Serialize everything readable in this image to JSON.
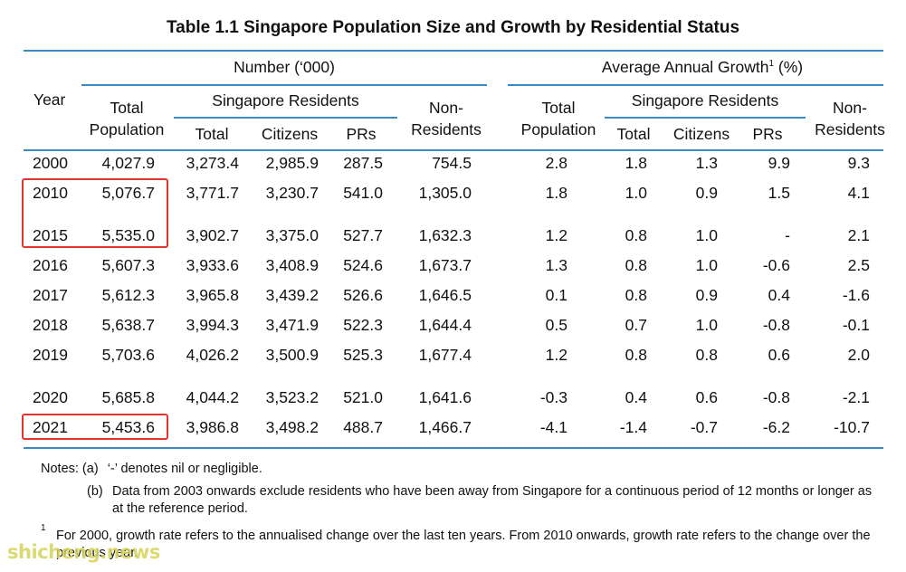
{
  "title": "Table 1.1  Singapore Population Size and Growth by Residential Status",
  "headers": {
    "year": "Year",
    "number_group": "Number (‘000)",
    "growth_group": "Average Annual Growth",
    "growth_sup": "1",
    "growth_unit": " (%)",
    "total_population_line1": "Total",
    "total_population_line2": "Population",
    "singapore_residents": "Singapore Residents",
    "total": "Total",
    "citizens": "Citizens",
    "prs": "PRs",
    "non_residents_line1": "Non-",
    "non_residents_line2": "Residents"
  },
  "rows": [
    {
      "year": "2000",
      "total_population": "4,027.9",
      "res_total": "3,273.4",
      "citizens": "2,985.9",
      "prs": "287.5",
      "non_residents": "754.5",
      "g_total_population": "2.8",
      "g_res_total": "1.8",
      "g_citizens": "1.3",
      "g_prs": "9.9",
      "g_non_residents": "9.3"
    },
    {
      "year": "2010",
      "total_population": "5,076.7",
      "res_total": "3,771.7",
      "citizens": "3,230.7",
      "prs": "541.0",
      "non_residents": "1,305.0",
      "g_total_population": "1.8",
      "g_res_total": "1.0",
      "g_citizens": "0.9",
      "g_prs": "1.5",
      "g_non_residents": "4.1"
    },
    {
      "year": "2015",
      "total_population": "5,535.0",
      "res_total": "3,902.7",
      "citizens": "3,375.0",
      "prs": "527.7",
      "non_residents": "1,632.3",
      "g_total_population": "1.2",
      "g_res_total": "0.8",
      "g_citizens": "1.0",
      "g_prs": "-",
      "g_non_residents": "2.1"
    },
    {
      "year": "2016",
      "total_population": "5,607.3",
      "res_total": "3,933.6",
      "citizens": "3,408.9",
      "prs": "524.6",
      "non_residents": "1,673.7",
      "g_total_population": "1.3",
      "g_res_total": "0.8",
      "g_citizens": "1.0",
      "g_prs": "-0.6",
      "g_non_residents": "2.5"
    },
    {
      "year": "2017",
      "total_population": "5,612.3",
      "res_total": "3,965.8",
      "citizens": "3,439.2",
      "prs": "526.6",
      "non_residents": "1,646.5",
      "g_total_population": "0.1",
      "g_res_total": "0.8",
      "g_citizens": "0.9",
      "g_prs": "0.4",
      "g_non_residents": "-1.6"
    },
    {
      "year": "2018",
      "total_population": "5,638.7",
      "res_total": "3,994.3",
      "citizens": "3,471.9",
      "prs": "522.3",
      "non_residents": "1,644.4",
      "g_total_population": "0.5",
      "g_res_total": "0.7",
      "g_citizens": "1.0",
      "g_prs": "-0.8",
      "g_non_residents": "-0.1"
    },
    {
      "year": "2019",
      "total_population": "5,703.6",
      "res_total": "4,026.2",
      "citizens": "3,500.9",
      "prs": "525.3",
      "non_residents": "1,677.4",
      "g_total_population": "1.2",
      "g_res_total": "0.8",
      "g_citizens": "0.8",
      "g_prs": "0.6",
      "g_non_residents": "2.0"
    },
    {
      "year": "2020",
      "total_population": "5,685.8",
      "res_total": "4,044.2",
      "citizens": "3,523.2",
      "prs": "521.0",
      "non_residents": "1,641.6",
      "g_total_population": "-0.3",
      "g_res_total": "0.4",
      "g_citizens": "0.6",
      "g_prs": "-0.8",
      "g_non_residents": "-2.1"
    },
    {
      "year": "2021",
      "total_population": "5,453.6",
      "res_total": "3,986.8",
      "citizens": "3,498.2",
      "prs": "488.7",
      "non_residents": "1,466.7",
      "g_total_population": "-4.1",
      "g_res_total": "-1.4",
      "g_citizens": "-0.7",
      "g_prs": "-6.2",
      "g_non_residents": "-10.7"
    }
  ],
  "notes": {
    "label": "Notes: (a)",
    "a_text": "‘-’ denotes nil or negligible.",
    "b_label": "(b)",
    "b_text": "Data from 2003 onwards exclude residents who have been away from Singapore for a continuous period of 12 months or longer as at the reference period.",
    "fn_mark": "1",
    "fn_text": "For 2000, growth rate refers to the annualised change over the last ten years. From 2010 onwards, growth rate refers to the change over the previous year."
  },
  "watermark": "shicheng.news",
  "colors": {
    "rule": "#3a8ac4",
    "highlight": "#e0362c",
    "watermark": "#d8d35a"
  }
}
